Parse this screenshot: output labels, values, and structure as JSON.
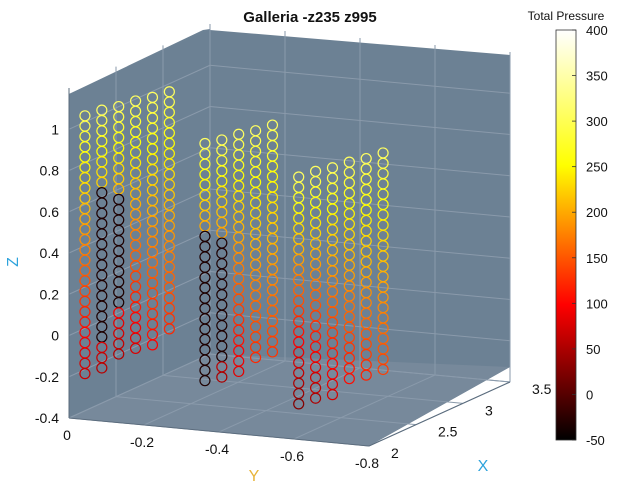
{
  "chart_data": {
    "type": "scatter",
    "projection": "3d",
    "title": "Galleria -z235 z995",
    "xlabel": "X",
    "ylabel": "Y",
    "zlabel": "Z",
    "xlim": [
      2,
      3.5
    ],
    "ylim": [
      0,
      -0.8
    ],
    "zlim": [
      -0.4,
      1.2
    ],
    "x_ticks": [
      "2",
      "2.5",
      "3",
      "3.5"
    ],
    "y_ticks": [
      "0",
      "-0.2",
      "-0.4",
      "-0.6",
      "-0.8"
    ],
    "z_ticks": [
      "-0.4",
      "-0.2",
      "0",
      "0.2",
      "0.4",
      "0.6",
      "0.8",
      "1"
    ],
    "grid": true,
    "marker": "open-circle",
    "axis_label_color": "#2ea3dc",
    "pane_color": "#6d8295",
    "colorbar": {
      "title": "Total Pressure",
      "range": [
        -50,
        400
      ],
      "colormap": "hot",
      "ticks": [
        "400",
        "350",
        "300",
        "250",
        "200",
        "150",
        "100",
        "50",
        "0",
        "-50"
      ]
    },
    "groups": [
      {
        "columns": [
          {
            "x": 2.05,
            "y": -0.03,
            "z_top": 1.06,
            "z_bottom": -0.21,
            "z_step": 0.05,
            "pressure_top": 330,
            "pressure_bottom": 80,
            "dark_from": null,
            "dark_to": null
          },
          {
            "x": 2.07,
            "y": -0.07,
            "z_top": 1.09,
            "z_bottom": -0.17,
            "z_step": 0.05,
            "pressure_top": 330,
            "pressure_bottom": 70,
            "dark_from": 0.72,
            "dark_to": -0.03
          },
          {
            "x": 2.09,
            "y": -0.11,
            "z_top": 1.11,
            "z_bottom": -0.13,
            "z_step": 0.05,
            "pressure_top": 330,
            "pressure_bottom": 60,
            "dark_from": 0.68,
            "dark_to": 0.12
          },
          {
            "x": 2.11,
            "y": -0.15,
            "z_top": 1.14,
            "z_bottom": -0.08,
            "z_step": 0.05,
            "pressure_top": 330,
            "pressure_bottom": 90,
            "dark_from": null,
            "dark_to": null
          },
          {
            "x": 2.13,
            "y": -0.19,
            "z_top": 1.16,
            "z_bottom": -0.04,
            "z_step": 0.05,
            "pressure_top": 330,
            "pressure_bottom": 120,
            "dark_from": null,
            "dark_to": null
          },
          {
            "x": 2.15,
            "y": -0.23,
            "z_top": 1.19,
            "z_bottom": 0.01,
            "z_step": 0.05,
            "pressure_top": 330,
            "pressure_bottom": 140,
            "dark_from": null,
            "dark_to": null
          }
        ]
      },
      {
        "columns": [
          {
            "x": 2.05,
            "y": -0.35,
            "z_top": 0.98,
            "z_bottom": -0.2,
            "z_step": 0.05,
            "pressure_top": 330,
            "pressure_bottom": 40,
            "dark_from": 0.55,
            "dark_to": -0.2
          },
          {
            "x": 2.07,
            "y": -0.39,
            "z_top": 1.0,
            "z_bottom": -0.16,
            "z_step": 0.05,
            "pressure_top": 330,
            "pressure_bottom": 60,
            "dark_from": 0.52,
            "dark_to": -0.1
          },
          {
            "x": 2.09,
            "y": -0.43,
            "z_top": 1.03,
            "z_bottom": -0.12,
            "z_step": 0.05,
            "pressure_top": 330,
            "pressure_bottom": 100,
            "dark_from": null,
            "dark_to": null
          },
          {
            "x": 2.11,
            "y": -0.47,
            "z_top": 1.05,
            "z_bottom": -0.08,
            "z_step": 0.05,
            "pressure_top": 330,
            "pressure_bottom": 140,
            "dark_from": null,
            "dark_to": null
          },
          {
            "x": 2.13,
            "y": -0.51,
            "z_top": 1.08,
            "z_bottom": -0.04,
            "z_step": 0.05,
            "pressure_top": 330,
            "pressure_bottom": 150,
            "dark_from": null,
            "dark_to": null
          }
        ]
      },
      {
        "columns": [
          {
            "x": 2.05,
            "y": -0.6,
            "z_top": 0.86,
            "z_bottom": -0.27,
            "z_step": 0.05,
            "pressure_top": 330,
            "pressure_bottom": 30,
            "dark_from": null,
            "dark_to": null
          },
          {
            "x": 2.07,
            "y": -0.64,
            "z_top": 0.89,
            "z_bottom": -0.23,
            "z_step": 0.05,
            "pressure_top": 330,
            "pressure_bottom": 60,
            "dark_from": null,
            "dark_to": null
          },
          {
            "x": 2.09,
            "y": -0.68,
            "z_top": 0.91,
            "z_bottom": -0.19,
            "z_step": 0.05,
            "pressure_top": 330,
            "pressure_bottom": 90,
            "dark_from": null,
            "dark_to": null
          },
          {
            "x": 2.11,
            "y": -0.72,
            "z_top": 0.94,
            "z_bottom": -0.14,
            "z_step": 0.05,
            "pressure_top": 330,
            "pressure_bottom": 120,
            "dark_from": null,
            "dark_to": null
          },
          {
            "x": 2.13,
            "y": -0.76,
            "z_top": 0.96,
            "z_bottom": -0.1,
            "z_step": 0.05,
            "pressure_top": 330,
            "pressure_bottom": 140,
            "dark_from": null,
            "dark_to": null
          },
          {
            "x": 2.15,
            "y": -0.8,
            "z_top": 0.99,
            "z_bottom": -0.06,
            "z_step": 0.05,
            "pressure_top": 330,
            "pressure_bottom": 160,
            "dark_from": null,
            "dark_to": null
          }
        ]
      }
    ]
  }
}
